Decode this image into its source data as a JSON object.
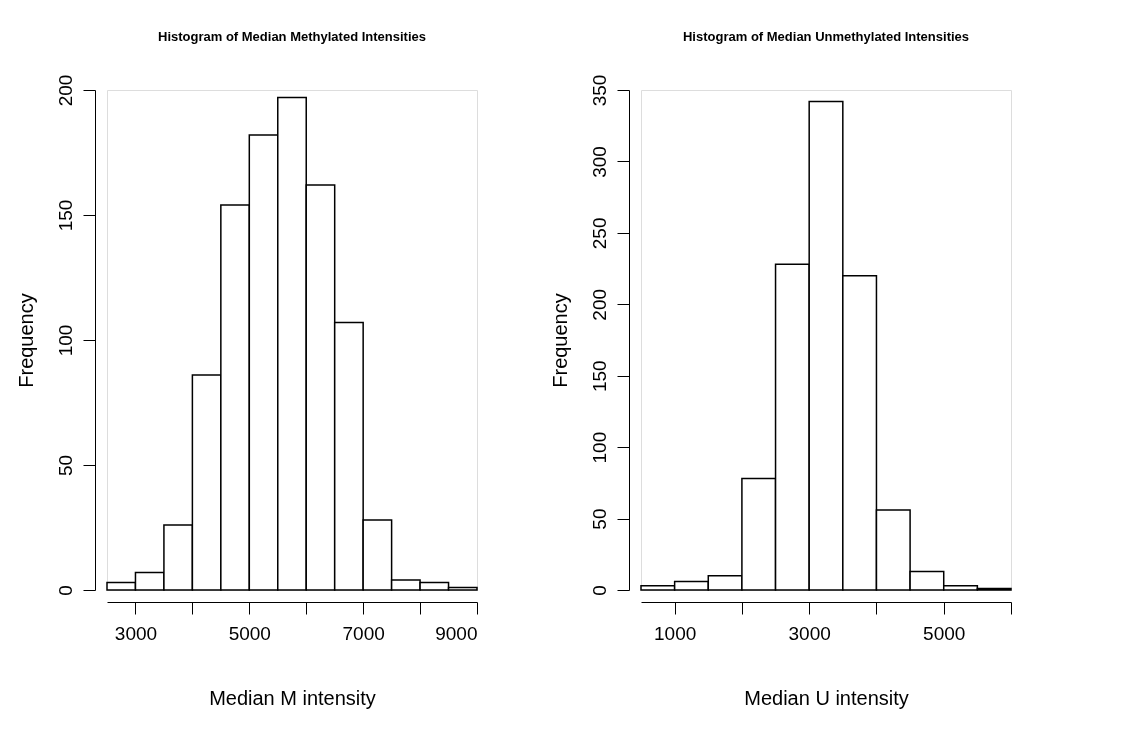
{
  "chart_data": [
    {
      "type": "histogram",
      "title": "Histogram of Median Methylated Intensities",
      "xlabel": "Median M intensity",
      "ylabel": "Frequency",
      "bins": [
        2500,
        3000,
        3500,
        4000,
        4500,
        5000,
        5500,
        6000,
        6500,
        7000,
        7500,
        8000,
        8500,
        9000
      ],
      "values": [
        3,
        7,
        26,
        86,
        154,
        182,
        197,
        162,
        107,
        28,
        4,
        3,
        1
      ],
      "color": "#ffffff",
      "xlim": [
        2500,
        9000
      ],
      "xticks": [
        3000,
        {
          "value": 4000,
          "label": null
        },
        5000,
        {
          "value": 6000,
          "label": null
        },
        7000,
        {
          "value": 8000,
          "label": null
        },
        9000
      ],
      "ylim": [
        0,
        200
      ],
      "yticks": [
        0,
        50,
        100,
        150,
        200
      ],
      "grid": false
    },
    {
      "type": "histogram",
      "title": "Histogram of Median Unmethylated Intensities",
      "xlabel": "Median U intensity",
      "ylabel": "Frequency",
      "bins": [
        500,
        1000,
        1500,
        2000,
        2500,
        3000,
        3500,
        4000,
        4500,
        5000,
        5500,
        6000
      ],
      "values": [
        3,
        6,
        10,
        78,
        228,
        342,
        220,
        56,
        13,
        3,
        1
      ],
      "color": "#ffffff",
      "xlim": [
        500,
        6000
      ],
      "xticks": [
        1000,
        {
          "value": 2000,
          "label": null
        },
        3000,
        {
          "value": 4000,
          "label": null
        },
        5000,
        {
          "value": 6000,
          "label": null
        }
      ],
      "ylim": [
        0,
        350
      ],
      "yticks": [
        0,
        50,
        100,
        150,
        200,
        250,
        300,
        350
      ],
      "grid": false
    }
  ]
}
